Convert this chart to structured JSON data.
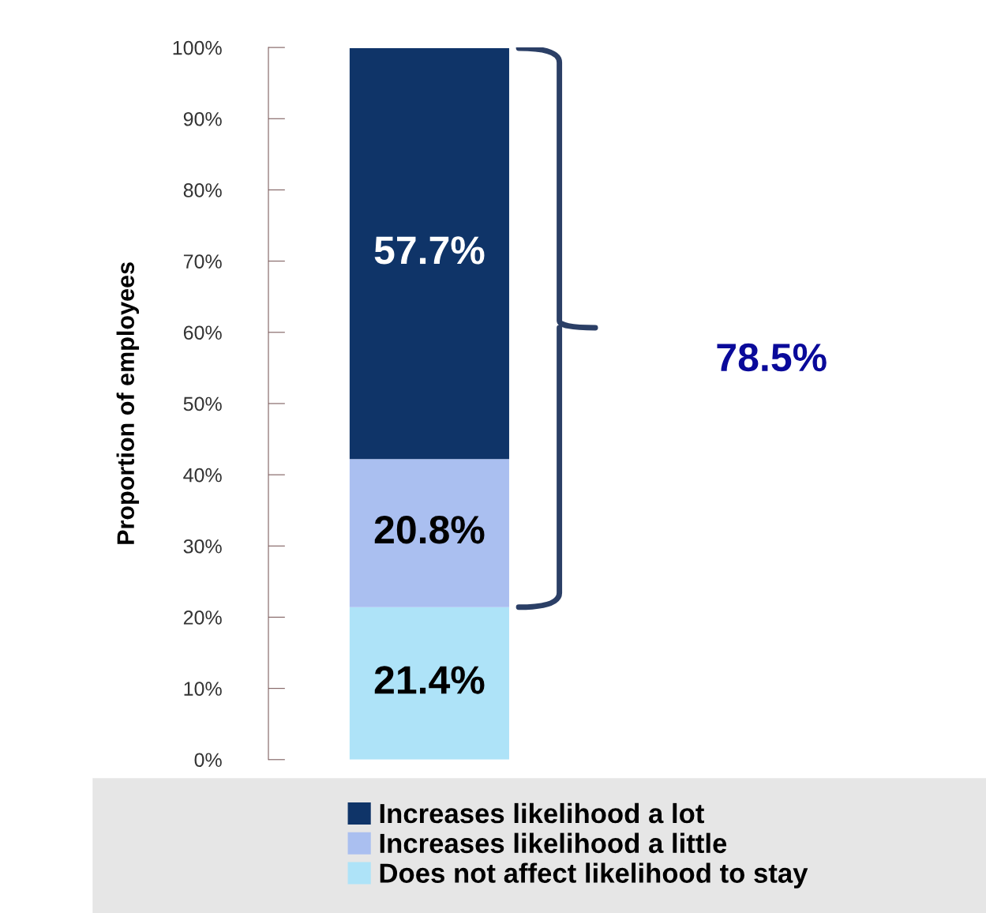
{
  "chart_data": {
    "type": "bar",
    "stacked": true,
    "ylabel": "Proportion of employees",
    "categories": [
      null
    ],
    "series": [
      {
        "name": "Does not affect likelihood to stay",
        "color": "#aee3f8",
        "values": [
          21.4
        ],
        "value_labels": [
          "21.4%"
        ]
      },
      {
        "name": "Increases likelihood a little",
        "color": "#aabff0",
        "values": [
          20.8
        ],
        "value_labels": [
          "20.8%"
        ]
      },
      {
        "name": "Increases likelihood a lot",
        "color": "#0f3468",
        "values": [
          57.7
        ],
        "value_labels": [
          "57.7%"
        ]
      }
    ],
    "ylim": [
      0,
      100
    ],
    "yticks": [
      {
        "value": 0,
        "label": "0%"
      },
      {
        "value": 10,
        "label": "10%"
      },
      {
        "value": 20,
        "label": "20%"
      },
      {
        "value": 30,
        "label": "30%"
      },
      {
        "value": 40,
        "label": "40%"
      },
      {
        "value": 50,
        "label": "50%"
      },
      {
        "value": 60,
        "label": "60%"
      },
      {
        "value": 70,
        "label": "70%"
      },
      {
        "value": 80,
        "label": "80%"
      },
      {
        "value": 90,
        "label": "90%"
      },
      {
        "value": 100,
        "label": "100%"
      }
    ],
    "tick_labels": "y",
    "grid": false,
    "legend": "bottom",
    "annotations": [
      "78.5%"
    ]
  }
}
